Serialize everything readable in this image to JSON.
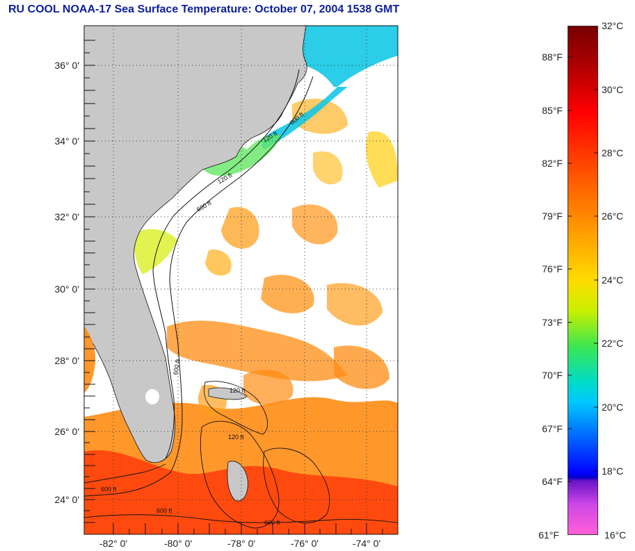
{
  "title": "RU COOL  NOAA-17  Sea Surface Temperature:  October 07, 2004 1538 GMT",
  "map": {
    "lat_labels": [
      "36° 0'",
      "34° 0'",
      "32° 0'",
      "30° 0'",
      "28° 0'",
      "26° 0'",
      "24° 0'"
    ],
    "lon_labels": [
      "-82° 0'",
      "-80° 0'",
      "-78° 0'",
      "-76° 0'",
      "-74° 0'"
    ],
    "isobath_labels": [
      "120 ft",
      "600 ft",
      "120 ft",
      "600 ft",
      "600 ft",
      "120 ft",
      "600 ft",
      "600 ft",
      "120 ft",
      "600 ft"
    ],
    "colors": {
      "land": "#c8c8c8",
      "cloud": "#ffffff",
      "warm": "#ff8c14",
      "hot": "#ff3c0a",
      "coastal": "#14c8e6"
    }
  },
  "colorbar": {
    "fahrenheit": [
      "88°F",
      "85°F",
      "82°F",
      "79°F",
      "76°F",
      "73°F",
      "70°F",
      "67°F",
      "64°F",
      "61°F"
    ],
    "celsius": [
      "32°C",
      "30°C",
      "28°C",
      "26°C",
      "24°C",
      "22°C",
      "20°C",
      "18°C",
      "16°C"
    ]
  }
}
